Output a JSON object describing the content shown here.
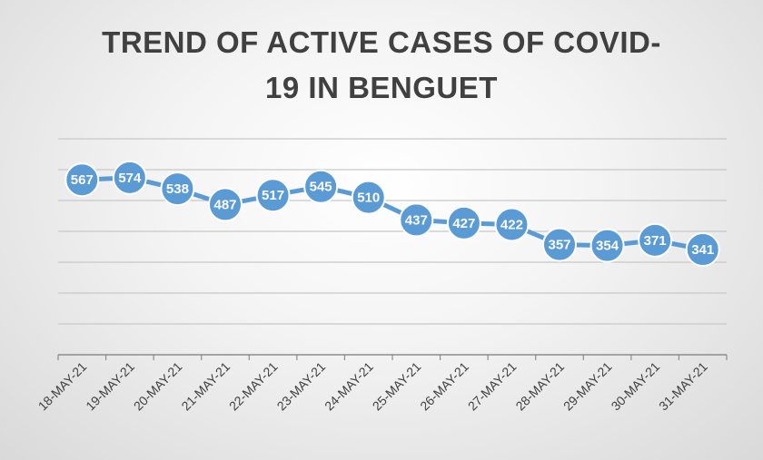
{
  "chart_data": {
    "type": "line",
    "title_lines": [
      "TREND OF ACTIVE CASES OF COVID-",
      "19 IN BENGUET"
    ],
    "xlabel": "",
    "ylabel": "",
    "categories": [
      "18-MAY-21",
      "19-MAY-21",
      "20-MAY-21",
      "21-MAY-21",
      "22-MAY-21",
      "23-MAY-21",
      "24-MAY-21",
      "25-MAY-21",
      "26-MAY-21",
      "27-MAY-21",
      "28-MAY-21",
      "29-MAY-21",
      "30-MAY-21",
      "31-MAY-21"
    ],
    "series": [
      {
        "values": [
          567,
          574,
          538,
          487,
          517,
          545,
          510,
          437,
          427,
          422,
          357,
          354,
          371,
          341
        ],
        "color": "#5b9bd5"
      }
    ],
    "ylim": [
      0,
      700
    ],
    "grid": true,
    "data_labels": true,
    "legend": "none"
  }
}
